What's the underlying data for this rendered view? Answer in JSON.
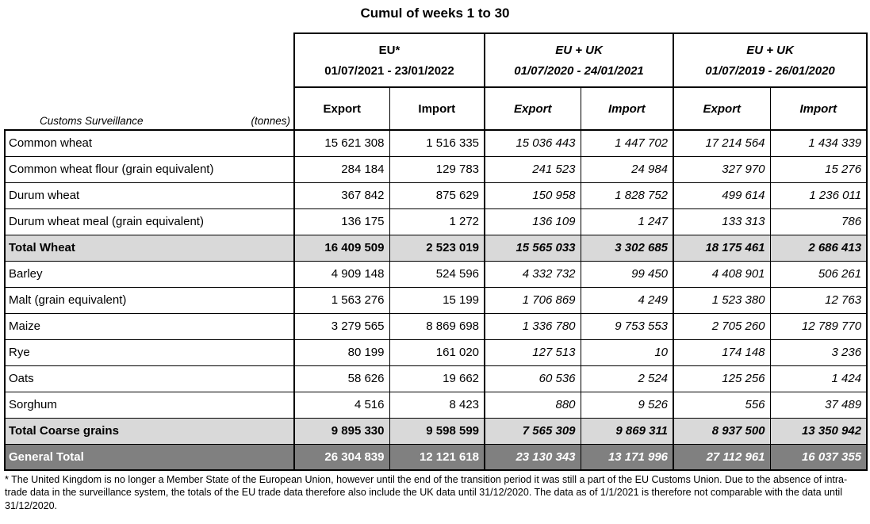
{
  "title": "Cumul of weeks 1 to 30",
  "table": {
    "corner_left": "Customs Surveillance",
    "corner_right": "(tonnes)",
    "groups": [
      {
        "name": "EU*",
        "period": "01/07/2021 - 23/01/2022"
      },
      {
        "name": "EU + UK",
        "period": "01/07/2020 - 24/01/2021"
      },
      {
        "name": "EU + UK",
        "period": "01/07/2019 - 26/01/2020"
      }
    ],
    "col_headers": [
      "Export",
      "Import",
      "Export",
      "Import",
      "Export",
      "Import"
    ],
    "rows": [
      {
        "label": "Common wheat",
        "type": "normal",
        "values": [
          "15 621 308",
          "1 516 335",
          "15 036 443",
          "1 447 702",
          "17 214 564",
          "1 434 339"
        ]
      },
      {
        "label": "Common wheat flour (grain equivalent)",
        "type": "normal",
        "values": [
          "284 184",
          "129 783",
          "241 523",
          "24 984",
          "327 970",
          "15 276"
        ]
      },
      {
        "label": "Durum wheat",
        "type": "normal",
        "values": [
          "367 842",
          "875 629",
          "150 958",
          "1 828 752",
          "499 614",
          "1 236 011"
        ]
      },
      {
        "label": "Durum wheat meal (grain equivalent)",
        "type": "normal",
        "values": [
          "136 175",
          "1 272",
          "136 109",
          "1 247",
          "133 313",
          "786"
        ]
      },
      {
        "label": "Total Wheat",
        "type": "subtotal",
        "values": [
          "16 409 509",
          "2 523 019",
          "15 565 033",
          "3 302 685",
          "18 175 461",
          "2 686 413"
        ]
      },
      {
        "label": "Barley",
        "type": "normal",
        "values": [
          "4 909 148",
          "524 596",
          "4 332 732",
          "99 450",
          "4 408 901",
          "506 261"
        ]
      },
      {
        "label": "Malt (grain equivalent)",
        "type": "normal",
        "values": [
          "1 563 276",
          "15 199",
          "1 706 869",
          "4 249",
          "1 523 380",
          "12 763"
        ]
      },
      {
        "label": "Maize",
        "type": "normal",
        "values": [
          "3 279 565",
          "8 869 698",
          "1 336 780",
          "9 753 553",
          "2 705 260",
          "12 789 770"
        ]
      },
      {
        "label": "Rye",
        "type": "normal",
        "values": [
          "80 199",
          "161 020",
          "127 513",
          "10",
          "174 148",
          "3 236"
        ]
      },
      {
        "label": "Oats",
        "type": "normal",
        "values": [
          "58 626",
          "19 662",
          "60 536",
          "2 524",
          "125 256",
          "1 424"
        ]
      },
      {
        "label": "Sorghum",
        "type": "normal",
        "values": [
          "4 516",
          "8 423",
          "880",
          "9 526",
          "556",
          "37 489"
        ]
      },
      {
        "label": "Total Coarse grains",
        "type": "subtotal",
        "values": [
          "9 895 330",
          "9 598 599",
          "7 565 309",
          "9 869 311",
          "8 937 500",
          "13 350 942"
        ]
      },
      {
        "label": "General Total",
        "type": "grandtotal",
        "values": [
          "26 304 839",
          "12 121 618",
          "23 130 343",
          "13 171 996",
          "27 112 961",
          "16 037 355"
        ]
      }
    ]
  },
  "footnote": "* The United Kingdom is no longer a Member State of the European Union, however until the end of the transition period it was still a part of the EU Customs Union. Due to the absence of intra-trade data in the surveillance system, the totals of the EU trade data  therefore also include the UK data until 31/12/2020. The data as of 1/1/2021 is therefore not comparable with the data until 31/12/2020.",
  "colors": {
    "subtotal_bg": "#d9d9d9",
    "grandtotal_bg": "#808080",
    "grandtotal_text": "#ffffff",
    "border": "#000000"
  }
}
